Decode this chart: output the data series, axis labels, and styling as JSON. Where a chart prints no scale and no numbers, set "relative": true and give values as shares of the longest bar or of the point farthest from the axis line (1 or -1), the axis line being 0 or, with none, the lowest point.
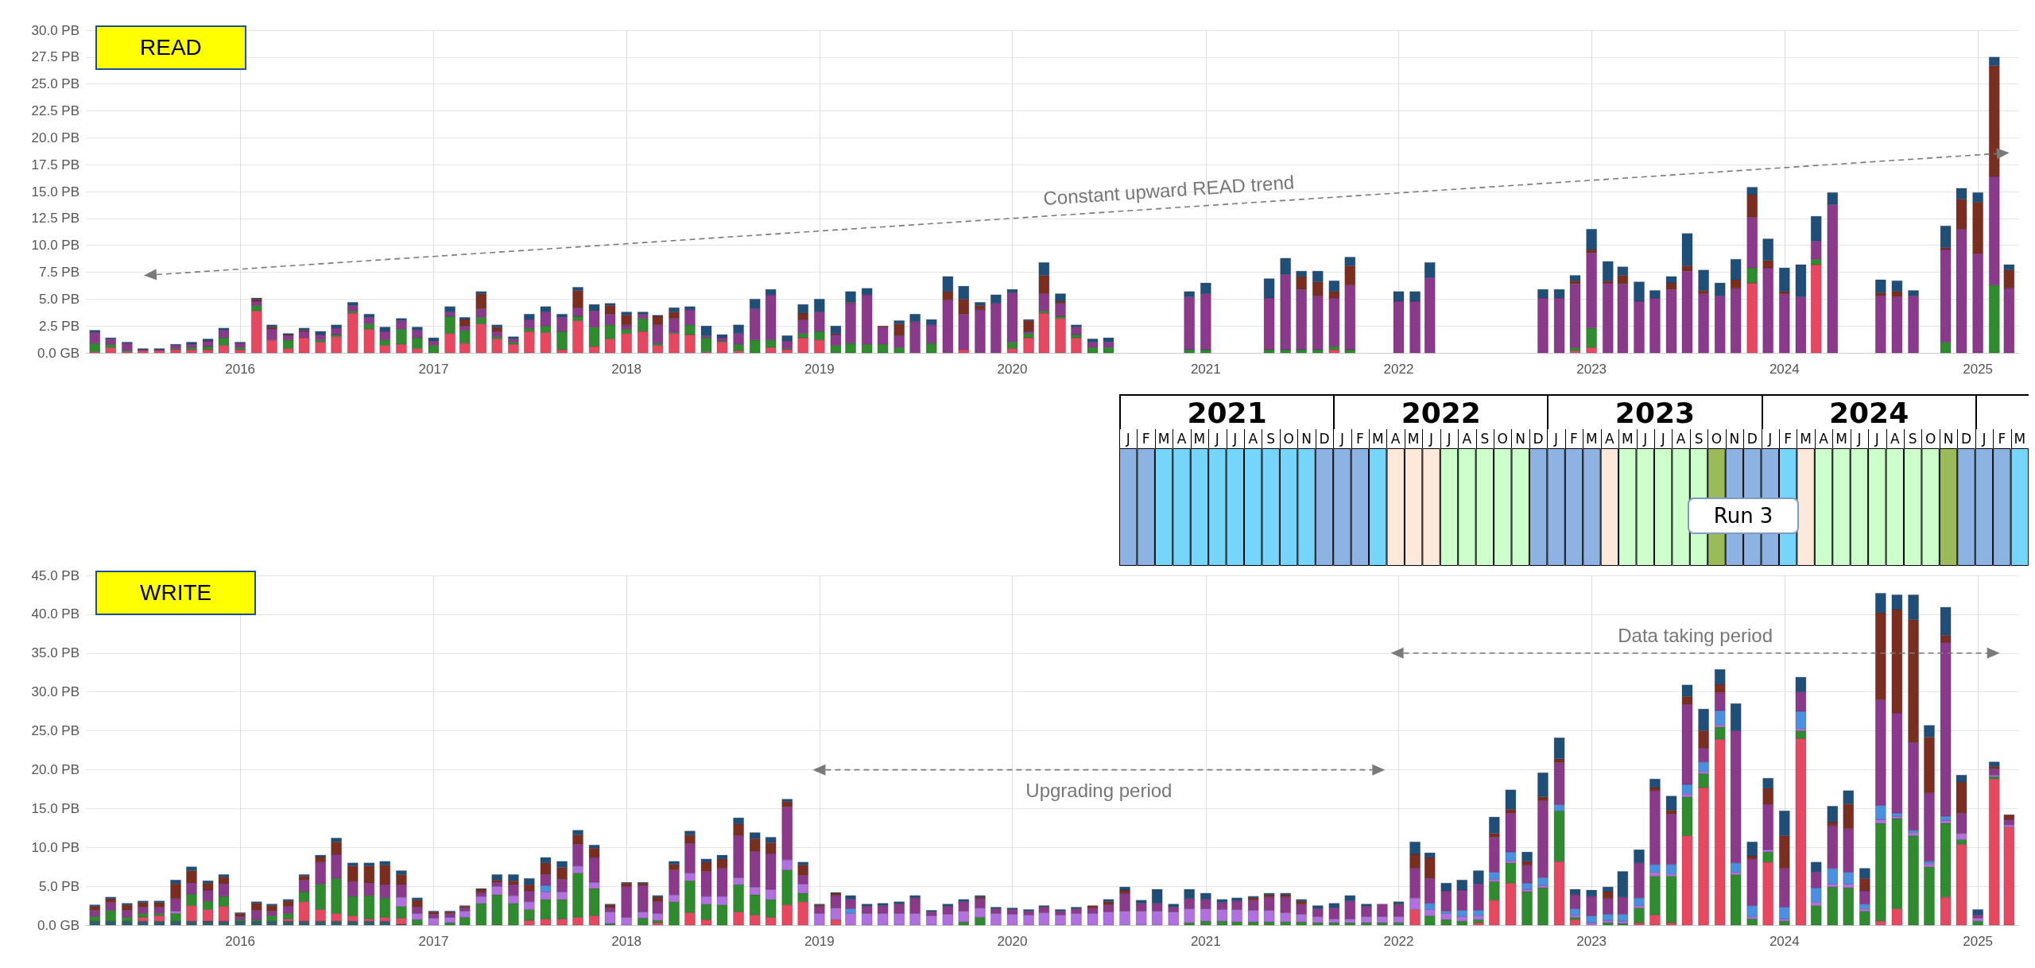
{
  "chart_data": [
    {
      "type": "bar",
      "title": "READ",
      "stacked": true,
      "grid": true,
      "x": [
        "2015-04",
        "2015-05",
        "2015-06",
        "2015-07",
        "2015-08",
        "2015-09",
        "2015-10",
        "2015-11",
        "2015-12",
        "2016-01",
        "2016-02",
        "2016-03",
        "2016-04",
        "2016-05",
        "2016-06",
        "2016-07",
        "2016-08",
        "2016-09",
        "2016-10",
        "2016-11",
        "2016-12",
        "2017-01",
        "2017-02",
        "2017-03",
        "2017-04",
        "2017-05",
        "2017-06",
        "2017-07",
        "2017-08",
        "2017-09",
        "2017-10",
        "2017-11",
        "2017-12",
        "2018-01",
        "2018-02",
        "2018-03",
        "2018-04",
        "2018-05",
        "2018-06",
        "2018-07",
        "2018-08",
        "2018-09",
        "2018-10",
        "2018-11",
        "2018-12",
        "2019-01",
        "2019-02",
        "2019-03",
        "2019-04",
        "2019-05",
        "2019-06",
        "2019-07",
        "2019-08",
        "2019-09",
        "2019-10",
        "2019-11",
        "2019-12",
        "2020-01",
        "2020-02",
        "2020-03",
        "2020-04",
        "2020-05",
        "2020-06",
        "2020-07",
        "2020-08",
        "2020-09",
        "2020-10",
        "2020-11",
        "2020-12",
        "2021-01",
        "2021-02",
        "2021-03",
        "2021-04",
        "2021-05",
        "2021-06",
        "2021-07",
        "2021-08",
        "2021-09",
        "2021-10",
        "2021-11",
        "2021-12",
        "2022-01",
        "2022-02",
        "2022-03",
        "2022-04",
        "2022-05",
        "2022-06",
        "2022-07",
        "2022-08",
        "2022-09",
        "2022-10",
        "2022-11",
        "2022-12",
        "2023-01",
        "2023-02",
        "2023-03",
        "2023-04",
        "2023-05",
        "2023-06",
        "2023-07",
        "2023-08",
        "2023-09",
        "2023-10",
        "2023-11",
        "2023-12",
        "2024-01",
        "2024-02",
        "2024-03",
        "2024-04",
        "2024-05",
        "2024-06",
        "2024-07",
        "2024-08",
        "2024-09",
        "2024-10",
        "2024-11",
        "2024-12",
        "2025-01",
        "2025-02",
        "2025-03"
      ],
      "xlim": [
        "2015-03-15",
        "2025-03-20"
      ],
      "xticks": [
        "2016",
        "2017",
        "2018",
        "2019",
        "2020",
        "2021",
        "2022",
        "2023",
        "2024",
        "2025"
      ],
      "ylim": [
        0,
        30
      ],
      "yticks": [
        {
          "value": 0,
          "label": "0.0 GB"
        },
        {
          "value": 2.5,
          "label": "2.5 PB"
        },
        {
          "value": 5,
          "label": "5.0 PB"
        },
        {
          "value": 7.5,
          "label": "7.5 PB"
        },
        {
          "value": 10,
          "label": "10.0 PB"
        },
        {
          "value": 12.5,
          "label": "12.5 PB"
        },
        {
          "value": 15,
          "label": "15.0 PB"
        },
        {
          "value": 17.5,
          "label": "17.5 PB"
        },
        {
          "value": 20,
          "label": "20.0 PB"
        },
        {
          "value": 22.5,
          "label": "22.5 PB"
        },
        {
          "value": 25,
          "label": "25.0 PB"
        },
        {
          "value": 27.5,
          "label": "27.5 PB"
        },
        {
          "value": 30,
          "label": "30.0 PB"
        }
      ],
      "annotations": [
        "Constant upward READ trend"
      ],
      "series": [
        {
          "color": "#e8485f",
          "values": [
            0.1,
            0.5,
            0.1,
            0.2,
            0.2,
            0.3,
            0.3,
            0.3,
            0.7,
            0.3,
            3.9,
            1.2,
            0.4,
            1.4,
            1.0,
            1.5,
            3.7,
            2.2,
            0.7,
            0.8,
            0.4,
            0,
            1.8,
            0.9,
            2.7,
            1.3,
            0.8,
            2.0,
            1.9,
            0.3,
            3.0,
            0.6,
            1.3,
            1.8,
            2.0,
            0.7,
            1.8,
            1.7,
            0.1,
            1.0,
            0.2,
            0,
            0.5,
            0.3,
            1.4,
            1.2,
            0,
            0,
            0,
            0,
            0,
            0,
            0,
            0,
            0.3,
            0,
            0,
            0.4,
            1.4,
            3.7,
            3.2,
            1.4,
            0,
            0,
            null,
            null,
            null,
            null,
            0,
            0,
            null,
            null,
            null,
            0,
            0,
            0,
            0,
            0.3,
            0,
            null,
            null,
            0,
            0,
            0,
            null,
            null,
            null,
            null,
            null,
            null,
            0,
            0,
            0.2,
            0.5,
            0,
            0,
            0,
            0,
            0,
            0,
            0,
            0,
            0,
            6.5,
            0,
            0,
            0,
            8.2,
            0,
            null,
            null,
            0,
            0,
            0,
            null,
            0,
            0,
            0,
            0,
            0
          ]
        },
        {
          "color": "#2e8b2e",
          "values": [
            0.8,
            0.3,
            0.1,
            0,
            0,
            0.1,
            0.2,
            0.3,
            0.7,
            0.2,
            0.5,
            0,
            0.8,
            0,
            0.2,
            0.2,
            0.2,
            0.5,
            0.5,
            1.4,
            1.0,
            0.7,
            1.6,
            1.2,
            0.6,
            0.2,
            0.2,
            0.3,
            0.6,
            1.7,
            0.4,
            1.8,
            1.3,
            0.4,
            1.2,
            0.2,
            0.1,
            0.9,
            1.3,
            0.1,
            0.6,
            1.2,
            0.7,
            0.1,
            0.4,
            0.8,
            0.7,
            0.9,
            0.8,
            0.8,
            0.5,
            0,
            0.9,
            0,
            0,
            0,
            0,
            0.6,
            0.4,
            0.2,
            0.2,
            0.3,
            0.5,
            0.5,
            null,
            null,
            null,
            null,
            0.3,
            0.3,
            null,
            null,
            null,
            0.3,
            0.3,
            0.3,
            0.3,
            0.3,
            0.3,
            null,
            null,
            0,
            0,
            0,
            null,
            null,
            null,
            null,
            null,
            null,
            0,
            0,
            0.3,
            1.8,
            0,
            0,
            0,
            0,
            0,
            0,
            0,
            0,
            0,
            1.4,
            0,
            0,
            0,
            0.5,
            0,
            null,
            null,
            0,
            0,
            0,
            null,
            1.0,
            0,
            0,
            6.3,
            0
          ]
        },
        {
          "color": "#8b3a8b",
          "values": [
            1.0,
            0.5,
            0.7,
            0.1,
            0.1,
            0.3,
            0.3,
            0.5,
            0.7,
            0.4,
            0.4,
            1.0,
            0.4,
            0.6,
            0.5,
            0.6,
            0.5,
            0.6,
            0.8,
            0.8,
            0.7,
            0.4,
            0.4,
            0.4,
            0.8,
            0.5,
            0.3,
            0.8,
            1.3,
            1.3,
            0.8,
            1.5,
            1.0,
            0.4,
            0.4,
            1.7,
            1.3,
            1.4,
            0.2,
            0.3,
            1.0,
            2.9,
            4.2,
            0.7,
            1.3,
            1.8,
            1.0,
            3.7,
            4.6,
            1.6,
            1.1,
            2.9,
            1.7,
            4.9,
            3.3,
            4.0,
            4.6,
            4.6,
            0.2,
            1.6,
            1.2,
            0.7,
            0.5,
            0.5,
            null,
            null,
            null,
            null,
            4.9,
            5.2,
            null,
            null,
            null,
            4.8,
            7.0,
            5.6,
            5.0,
            4.5,
            6.0,
            null,
            null,
            4.8,
            4.8,
            7.0,
            null,
            null,
            null,
            null,
            null,
            null,
            5.1,
            5.1,
            5.9,
            7.0,
            6.5,
            6.4,
            4.8,
            5.1,
            5.9,
            7.6,
            5.5,
            5.3,
            6.0,
            4.7,
            7.9,
            5.5,
            5.2,
            1.7,
            13.8,
            null,
            null,
            5.3,
            5.2,
            5.3,
            null,
            8.6,
            11.5,
            9.2,
            10.1,
            6.0
          ]
        },
        {
          "color": "#7b2e1f",
          "values": [
            0,
            0,
            0,
            0,
            0,
            0,
            0,
            0,
            0,
            0,
            0.2,
            0.2,
            0.1,
            0.1,
            0,
            0,
            0,
            0,
            0,
            0,
            0,
            0,
            0,
            0.6,
            1.4,
            0.4,
            0,
            0,
            0,
            0,
            1.6,
            0,
            0.8,
            0.9,
            0,
            0.8,
            0.6,
            0,
            0,
            0,
            0,
            0,
            0,
            0,
            0.6,
            0,
            0.1,
            0.1,
            0,
            0.1,
            1.1,
            0,
            0,
            0.8,
            1.4,
            0.4,
            0,
            0,
            1.0,
            1.7,
            0.2,
            0,
            0,
            0,
            null,
            null,
            null,
            null,
            0,
            0,
            null,
            null,
            null,
            0,
            0,
            1.2,
            1.3,
            0.6,
            1.8,
            null,
            null,
            0,
            0,
            0,
            null,
            null,
            null,
            null,
            null,
            null,
            0,
            0,
            0.3,
            0.3,
            0.2,
            0.8,
            0,
            0,
            0.6,
            0.5,
            0.3,
            0,
            0.8,
            2.1,
            0.7,
            0.2,
            0,
            0,
            0,
            null,
            null,
            0.3,
            0.5,
            0,
            null,
            0.2,
            2.8,
            4.8,
            10.3,
            1.7
          ]
        },
        {
          "color": "#1f4e79",
          "values": [
            0.2,
            0.1,
            0.1,
            0.1,
            0.1,
            0.1,
            0.2,
            0.2,
            0.2,
            0.1,
            0.1,
            0.2,
            0.1,
            0.2,
            0.3,
            0.3,
            0.3,
            0.3,
            0.4,
            0.2,
            0.3,
            0.3,
            0.5,
            0.2,
            0.2,
            0.2,
            0.2,
            0.5,
            0.5,
            0.3,
            0.3,
            0.6,
            0.2,
            0.3,
            0.2,
            0.1,
            0.4,
            0.3,
            0.9,
            0.3,
            0.8,
            0.9,
            0.5,
            0.5,
            0.8,
            1.2,
            0.7,
            1.0,
            0.6,
            0,
            0.3,
            0.7,
            0.5,
            1.4,
            1.2,
            0.3,
            0.8,
            0.3,
            0.1,
            1.2,
            0.7,
            0.2,
            0.3,
            0.4,
            null,
            null,
            null,
            null,
            0.5,
            1.0,
            null,
            null,
            null,
            1.8,
            1.5,
            0.5,
            1.0,
            1.0,
            0.8,
            null,
            null,
            0.9,
            0.9,
            1.4,
            null,
            null,
            null,
            null,
            null,
            null,
            0.8,
            0.8,
            0.5,
            1.9,
            1.8,
            0.8,
            1.8,
            0.7,
            0.6,
            3.0,
            1.9,
            1.2,
            1.9,
            0.7,
            2.0,
            2.2,
            3.0,
            2.3,
            1.1,
            null,
            null,
            1.2,
            1.0,
            0.5,
            null,
            2.0,
            1.0,
            0.9,
            0.8,
            0.5
          ]
        }
      ]
    },
    {
      "type": "bar",
      "title": "WRITE",
      "stacked": true,
      "grid": true,
      "x": [
        "2015-04",
        "2015-05",
        "2015-06",
        "2015-07",
        "2015-08",
        "2015-09",
        "2015-10",
        "2015-11",
        "2015-12",
        "2016-01",
        "2016-02",
        "2016-03",
        "2016-04",
        "2016-05",
        "2016-06",
        "2016-07",
        "2016-08",
        "2016-09",
        "2016-10",
        "2016-11",
        "2016-12",
        "2017-01",
        "2017-02",
        "2017-03",
        "2017-04",
        "2017-05",
        "2017-06",
        "2017-07",
        "2017-08",
        "2017-09",
        "2017-10",
        "2017-11",
        "2017-12",
        "2018-01",
        "2018-02",
        "2018-03",
        "2018-04",
        "2018-05",
        "2018-06",
        "2018-07",
        "2018-08",
        "2018-09",
        "2018-10",
        "2018-11",
        "2018-12",
        "2019-01",
        "2019-02",
        "2019-03",
        "2019-04",
        "2019-05",
        "2019-06",
        "2019-07",
        "2019-08",
        "2019-09",
        "2019-10",
        "2019-11",
        "2019-12",
        "2020-01",
        "2020-02",
        "2020-03",
        "2020-04",
        "2020-05",
        "2020-06",
        "2020-07",
        "2020-08",
        "2020-09",
        "2020-10",
        "2020-11",
        "2020-12",
        "2021-01",
        "2021-02",
        "2021-03",
        "2021-04",
        "2021-05",
        "2021-06",
        "2021-07",
        "2021-08",
        "2021-09",
        "2021-10",
        "2021-11",
        "2021-12",
        "2022-01",
        "2022-02",
        "2022-03",
        "2022-04",
        "2022-05",
        "2022-06",
        "2022-07",
        "2022-08",
        "2022-09",
        "2022-10",
        "2022-11",
        "2022-12",
        "2023-01",
        "2023-02",
        "2023-03",
        "2023-04",
        "2023-05",
        "2023-06",
        "2023-07",
        "2023-08",
        "2023-09",
        "2023-10",
        "2023-11",
        "2023-12",
        "2024-01",
        "2024-02",
        "2024-03",
        "2024-04",
        "2024-05",
        "2024-06",
        "2024-07",
        "2024-08",
        "2024-09",
        "2024-10",
        "2024-11",
        "2024-12",
        "2025-01",
        "2025-02",
        "2025-03"
      ],
      "xlim": [
        "2015-03-15",
        "2025-03-20"
      ],
      "xticks": [
        "2016",
        "2017",
        "2018",
        "2019",
        "2020",
        "2021",
        "2022",
        "2023",
        "2024",
        "2025"
      ],
      "ylim": [
        0,
        45
      ],
      "yticks": [
        {
          "value": 0,
          "label": "0.0 GB"
        },
        {
          "value": 5,
          "label": "5.0 PB"
        },
        {
          "value": 10,
          "label": "10.0 PB"
        },
        {
          "value": 15,
          "label": "15.0 PB"
        },
        {
          "value": 20,
          "label": "20.0 PB"
        },
        {
          "value": 25,
          "label": "25.0 PB"
        },
        {
          "value": 30,
          "label": "30.0 PB"
        },
        {
          "value": 35,
          "label": "35.0 PB"
        },
        {
          "value": 40,
          "label": "40.0 PB"
        },
        {
          "value": 45,
          "label": "45.0 PB"
        }
      ],
      "annotations": [
        "Upgrading period",
        "Data taking period"
      ],
      "series": [
        {
          "color": "#2f5f6a",
          "values": [
            0.5,
            0.5,
            0.5,
            0.5,
            0.5,
            0.5,
            0.5,
            0.5,
            0.5,
            0.5,
            0.5,
            0.5,
            0.5,
            0.5,
            0.5,
            0.5,
            0.5,
            0.5,
            0.5,
            0.1,
            0,
            0,
            0,
            0,
            0,
            0,
            0,
            0,
            0,
            0,
            0,
            0,
            0,
            0,
            0,
            0,
            0,
            0,
            0,
            0,
            0,
            0,
            0,
            0,
            0,
            0,
            0,
            0,
            0,
            0,
            0,
            0,
            0,
            0,
            0,
            0,
            0,
            0,
            0,
            0,
            0,
            0,
            0,
            0,
            0,
            0,
            0,
            0,
            0,
            0,
            0,
            0,
            0,
            0,
            0,
            0,
            0,
            0,
            0,
            0,
            0,
            0,
            0,
            0,
            0,
            0,
            0,
            0,
            0,
            0,
            0,
            0,
            0,
            0,
            0,
            0,
            0,
            0,
            0,
            0,
            0,
            0,
            0,
            0,
            0,
            0,
            0,
            0,
            0,
            0,
            0,
            0,
            0,
            0,
            0,
            0,
            0,
            0,
            0,
            0
          ]
        },
        {
          "color": "#e8485f",
          "values": [
            0,
            0,
            0,
            0.5,
            0.7,
            0,
            2.0,
            1.5,
            1.9,
            0,
            0,
            0,
            0.3,
            2.5,
            1.5,
            1.0,
            0.7,
            0.3,
            0.5,
            0.8,
            0,
            0,
            0,
            0,
            0,
            0,
            0,
            0.6,
            0.8,
            0.8,
            1.0,
            1.2,
            0,
            0,
            0,
            0.3,
            0,
            1.6,
            0.7,
            0,
            1.7,
            1.3,
            1.0,
            2.6,
            3.0,
            0,
            0.7,
            0,
            0,
            0,
            0,
            0,
            0,
            0,
            0,
            0,
            0,
            0,
            0,
            0,
            0,
            0,
            0,
            0,
            0,
            0,
            0,
            0,
            0,
            0,
            0,
            0,
            0,
            0,
            0,
            0,
            0,
            0,
            0,
            0,
            0,
            0,
            2.0,
            0,
            0,
            0,
            0.3,
            3.2,
            5.4,
            0,
            0,
            8.2,
            0.7,
            0,
            0,
            0,
            0.3,
            1.3,
            0.3,
            11.5,
            17.7,
            23.9,
            0,
            0,
            8.1,
            0,
            24.0,
            0,
            0,
            0,
            0,
            0.5,
            2.1,
            0,
            0,
            3.6,
            10.4,
            0,
            18.8,
            12.6
          ]
        },
        {
          "color": "#2e8b2e",
          "values": [
            0.6,
            1.4,
            0.5,
            0.5,
            0.3,
            1.0,
            1.5,
            1.1,
            1.3,
            0.2,
            0.2,
            0.7,
            0.7,
            1.3,
            3.3,
            4.5,
            2.5,
            3.0,
            2.5,
            1.5,
            0.7,
            0,
            0.3,
            1.0,
            2.8,
            3.9,
            2.8,
            1.4,
            2.5,
            2.5,
            5.7,
            3.5,
            0.2,
            0,
            0.9,
            0.3,
            3.0,
            4.1,
            2.0,
            2.6,
            3.5,
            2.6,
            2.3,
            4.5,
            1.1,
            0,
            0,
            0,
            0,
            0,
            0,
            0,
            0,
            0,
            0.4,
            1.0,
            0,
            0,
            0,
            0,
            0,
            0,
            0,
            0,
            0,
            0,
            0,
            0,
            0.3,
            0.5,
            0.5,
            0.4,
            0.4,
            0.4,
            0.4,
            0.4,
            0.3,
            0.3,
            0.3,
            0.3,
            0.3,
            0.3,
            0,
            1.2,
            0.7,
            0.5,
            0.4,
            2.4,
            2.6,
            4.3,
            4.8,
            6.5,
            0.3,
            0,
            0.3,
            0.2,
            1.9,
            5.0,
            6.0,
            5.0,
            1.8,
            1.6,
            6.5,
            0.8,
            1.3,
            0.5,
            1.0,
            2.5,
            4.9,
            4.8,
            1.8,
            12.6,
            11.6,
            11.5,
            7.5,
            9.5,
            0.6,
            0.5,
            0.3,
            0
          ]
        },
        {
          "color": "#b070e0",
          "values": [
            0,
            0,
            0,
            0,
            0,
            0.3,
            0,
            0,
            0,
            0,
            0,
            0,
            0,
            0,
            0,
            0,
            0,
            0,
            0,
            1.2,
            0.8,
            0.9,
            0.7,
            0.8,
            0.9,
            1.1,
            1.0,
            1.0,
            1.0,
            1.0,
            0.9,
            0.8,
            1.5,
            1.0,
            0.8,
            0.9,
            0.9,
            1.0,
            1.0,
            1.1,
            0.9,
            1.0,
            1.3,
            1.3,
            1.2,
            1.5,
            1.5,
            1.5,
            1.5,
            1.5,
            1.5,
            1.5,
            1.2,
            1.4,
            1.4,
            1.2,
            1.5,
            1.4,
            1.3,
            1.6,
            1.3,
            1.5,
            1.5,
            1.7,
            1.8,
            1.8,
            1.8,
            1.7,
            1.8,
            1.6,
            1.5,
            1.6,
            1.5,
            1.5,
            1.2,
            1.0,
            0.8,
            0.5,
            0.5,
            0.8,
            0.8,
            0.8,
            1.5,
            0.8,
            0.8,
            0.6,
            0.5,
            0.3,
            0.3,
            0.3,
            0.3,
            0,
            0.3,
            0.3,
            0.3,
            0.3,
            0.3,
            0.5,
            0.3,
            0.4,
            0.3,
            0.3,
            0.3,
            0.3,
            0.3,
            0.3,
            0.3,
            0.5,
            0.4,
            0.5,
            0.3,
            0.5,
            0.3,
            0.4,
            0.4,
            0.4,
            0.8,
            0.4,
            0.2,
            0.3
          ]
        },
        {
          "color": "#4a90e2",
          "values": [
            0,
            0,
            0,
            0,
            0,
            0,
            0,
            0,
            0,
            0,
            0,
            0,
            0,
            0,
            0,
            0,
            0,
            0,
            0,
            0,
            0,
            0,
            0,
            0,
            0,
            0,
            0,
            0,
            0.8,
            0,
            0,
            0,
            0,
            0,
            0,
            0,
            0,
            0,
            0,
            0,
            0,
            0,
            0,
            0,
            0,
            0,
            0,
            0.6,
            0,
            0,
            0,
            0,
            0,
            0,
            0,
            0,
            0,
            0,
            0,
            0,
            0,
            0,
            0,
            0,
            0,
            0,
            0,
            0,
            0,
            0,
            0,
            0,
            0,
            0,
            0,
            0,
            0,
            0,
            0,
            0,
            0,
            0,
            0,
            0.8,
            0.3,
            0.8,
            0.7,
            0.9,
            1.1,
            0.8,
            1.0,
            0.8,
            0.8,
            0.9,
            0.8,
            0.9,
            1.0,
            1.0,
            1.2,
            1.2,
            1.2,
            1.8,
            1.2,
            1.4,
            0,
            1.5,
            2.2,
            1.8,
            2.0,
            1.5,
            0.6,
            1.8,
            0.4,
            0.3,
            0.3,
            0.5,
            0,
            0,
            0,
            0
          ]
        },
        {
          "color": "#8b3a8b",
          "values": [
            0.8,
            1.0,
            0.9,
            0.8,
            0.8,
            1.6,
            1.4,
            1.4,
            1.6,
            0.4,
            1.2,
            0.6,
            0.9,
            1.5,
            2.8,
            3.1,
            1.9,
            1.6,
            1.7,
            1.6,
            0.8,
            0.5,
            0.5,
            0.4,
            0.5,
            0.5,
            1.4,
            1.4,
            1.4,
            1.6,
            2.8,
            3.2,
            0.5,
            4.0,
            3.4,
            1.5,
            3.2,
            3.8,
            3.2,
            3.6,
            5.4,
            4.6,
            4.6,
            6.8,
            1.1,
            0.9,
            1.6,
            1.2,
            0.9,
            1.0,
            1.2,
            2.0,
            0.5,
            1.0,
            1.2,
            1.2,
            0.6,
            0.6,
            0.5,
            0.7,
            0.5,
            0.6,
            0.7,
            0.9,
            2.3,
            1.0,
            1.0,
            0.6,
            1.3,
            1.2,
            0.9,
            1.1,
            1.3,
            1.7,
            2.0,
            1.3,
            1.0,
            1.4,
            2.3,
            1.3,
            1.6,
            1.5,
            3.8,
            3.2,
            2.6,
            2.6,
            3.4,
            4.5,
            5.0,
            2.3,
            9.9,
            5.4,
            1.8,
            2.5,
            2.0,
            2.2,
            4.5,
            9.5,
            6.5,
            10.3,
            1.8,
            2.3,
            17.0,
            6.0,
            5.8,
            5.0,
            2.5,
            2.0,
            5.5,
            5.6,
            1.7,
            13.6,
            12.9,
            11.3,
            8.8,
            22.4,
            2.6,
            0.4,
            0.8,
            0.7
          ]
        },
        {
          "color": "#7b2e1f",
          "values": [
            0.5,
            0.5,
            0.7,
            0.6,
            0.6,
            1.9,
            1.6,
            0.9,
            0.9,
            0.4,
            0.9,
            0.7,
            0.7,
            0.5,
            0.7,
            1.6,
            2.0,
            2.2,
            2.5,
            1.3,
            0.9,
            0.3,
            0.2,
            0.2,
            0.4,
            0.3,
            0.5,
            0.8,
            1.5,
            1.5,
            1.2,
            1.2,
            0.4,
            0.4,
            0.3,
            0.6,
            0.7,
            1.1,
            1.2,
            1.2,
            1.5,
            1.6,
            1.4,
            0.7,
            1.3,
            0.2,
            0.3,
            0,
            0,
            0,
            0,
            0,
            0,
            0,
            0,
            0.2,
            0,
            0,
            0,
            0,
            0,
            0,
            0.3,
            0.4,
            0.4,
            0,
            0,
            0,
            0,
            0,
            0,
            0,
            0.3,
            0.3,
            0.3,
            0.4,
            0,
            0,
            0,
            0,
            0,
            0.1,
            1.8,
            2.7,
            0,
            0,
            0,
            0.5,
            0.5,
            0.5,
            0.5,
            0.5,
            0,
            0,
            0.9,
            0,
            0,
            0.4,
            0.5,
            1.0,
            2.2,
            1.1,
            0,
            0.4,
            2.1,
            4.2,
            0,
            0,
            0.5,
            3.2,
            1.6,
            11.2,
            13.3,
            15.8,
            7.2,
            0.9,
            4.0,
            0,
            0.3,
            0.6
          ]
        },
        {
          "color": "#1f4e79",
          "values": [
            0.2,
            0.2,
            0.2,
            0.2,
            0.2,
            0.5,
            0.5,
            0.3,
            0.3,
            0.1,
            0.2,
            0.2,
            0.2,
            0.2,
            0.2,
            0.5,
            0.4,
            0.4,
            0.5,
            0.5,
            0.3,
            0.1,
            0.1,
            0.1,
            0.1,
            0.7,
            0.8,
            0.8,
            0.7,
            0.8,
            0.6,
            0.4,
            0.1,
            0.1,
            0.1,
            0.2,
            0.4,
            0.5,
            0.4,
            0.5,
            0.8,
            0.8,
            0.7,
            0.3,
            0.4,
            0.1,
            0.1,
            0.5,
            0.3,
            0.3,
            0.3,
            0.3,
            0.2,
            0.3,
            0.3,
            0.2,
            0.2,
            0.2,
            0.2,
            0.2,
            0.2,
            0.2,
            0,
            0.3,
            0.4,
            0.4,
            1.8,
            0.4,
            1.2,
            0.8,
            0.4,
            0.4,
            0.2,
            0.2,
            0.2,
            0.2,
            0.4,
            0.6,
            0.7,
            0.3,
            0,
            0.3,
            1.6,
            0.6,
            1.0,
            1.3,
            1.7,
            2.1,
            2.5,
            1.2,
            3.1,
            2.7,
            0.7,
            0.8,
            0.6,
            3.3,
            1.7,
            1.1,
            1.8,
            1.5,
            2.8,
            1.9,
            3.5,
            1.8,
            1.3,
            3.2,
            1.9,
            1.3,
            2.0,
            1.7,
            1.3,
            2.5,
            1.9,
            3.2,
            1.5,
            3.6,
            0.9,
            0.7,
            0.6,
            0
          ]
        }
      ]
    },
    {
      "type": "bar",
      "relative": true,
      "values": [
        1,
        1,
        1,
        1,
        1,
        1,
        1,
        1,
        1,
        1,
        1,
        1,
        1,
        1,
        1,
        1,
        1,
        1,
        1,
        1,
        1,
        1,
        1,
        1,
        1,
        1,
        1,
        1,
        1,
        1,
        1,
        1,
        1,
        1,
        1,
        1,
        1,
        1,
        1,
        1,
        1,
        1,
        1,
        1,
        1,
        1,
        1,
        1,
        1,
        1,
        1
      ],
      "categories": [
        "J",
        "F",
        "M",
        "A",
        "M",
        "J",
        "J",
        "A",
        "S",
        "O",
        "N",
        "D",
        "J",
        "F",
        "M",
        "A",
        "M",
        "J",
        "J",
        "A",
        "S",
        "O",
        "N",
        "D",
        "J",
        "F",
        "M",
        "A",
        "M",
        "J",
        "J",
        "A",
        "S",
        "O",
        "N",
        "D",
        "J",
        "F",
        "M",
        "A",
        "M",
        "J",
        "J",
        "A",
        "S",
        "O",
        "N",
        "D",
        "J",
        "F",
        "M"
      ],
      "colors": [
        "#8db3e2",
        "#8db3e2",
        "#75d5fb",
        "#75d5fb",
        "#75d5fb",
        "#75d5fb",
        "#75d5fb",
        "#75d5fb",
        "#75d5fb",
        "#75d5fb",
        "#75d5fb",
        "#8db3e2",
        "#8db3e2",
        "#8db3e2",
        "#75d5fb",
        "#fde9d9",
        "#fde9d9",
        "#fde9d9",
        "#ccffcc",
        "#ccffcc",
        "#ccffcc",
        "#ccffcc",
        "#ccffcc",
        "#8db3e2",
        "#8db3e2",
        "#8db3e2",
        "#8db3e2",
        "#fde9d9",
        "#ccffcc",
        "#ccffcc",
        "#ccffcc",
        "#ccffcc",
        "#ccffcc",
        "#9bbb59",
        "#8db3e2",
        "#8db3e2",
        "#8db3e2",
        "#75d5fb",
        "#fde9d9",
        "#ccffcc",
        "#ccffcc",
        "#ccffcc",
        "#ccffcc",
        "#ccffcc",
        "#ccffcc",
        "#ccffcc",
        "#9bbb59",
        "#8db3e2",
        "#8db3e2",
        "#8db3e2",
        "#75d5fb"
      ],
      "annotations": [
        "2021",
        "2022",
        "2023",
        "2024",
        "Run 3"
      ]
    }
  ]
}
